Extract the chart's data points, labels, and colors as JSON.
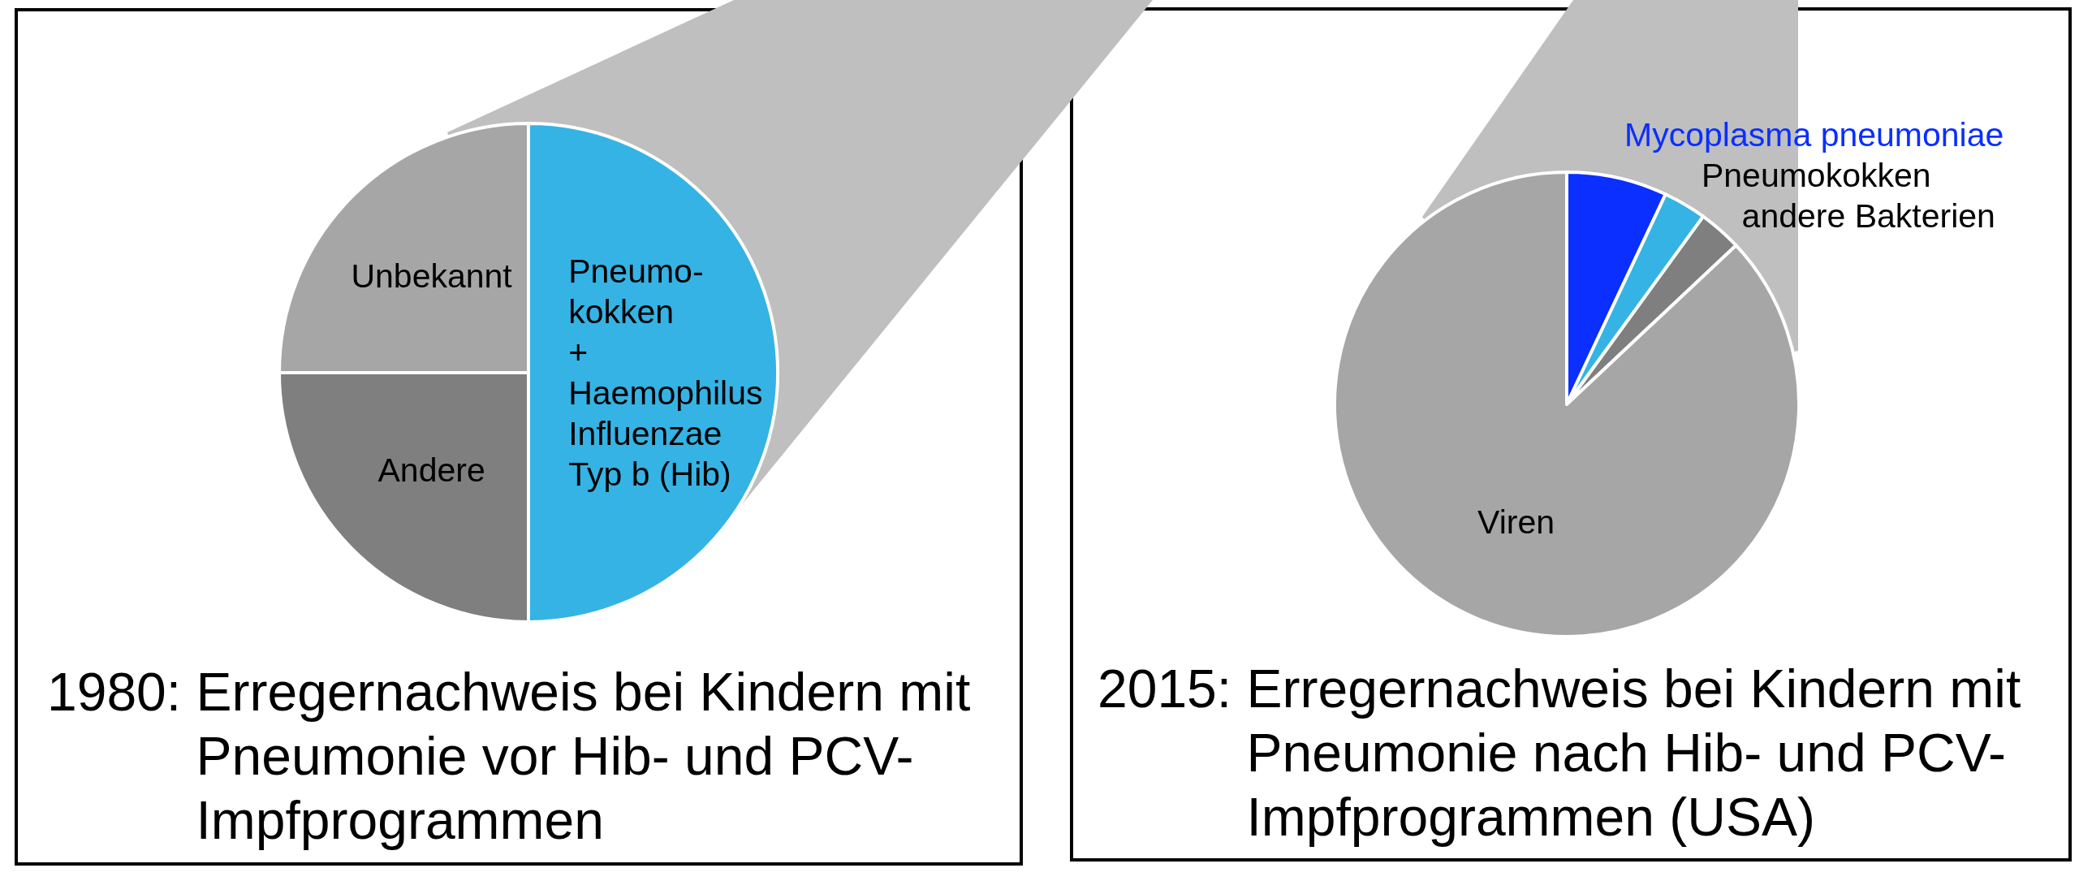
{
  "chart_data": [
    {
      "type": "pie",
      "title": "1980: Erregernachweis bei Kindern mit\nPneumonie vor Hib- und PCV-\nImpfprogrammen",
      "categories": [
        "Pneumo-\nkokken\n+\nHaemophilus\nInfluenzae\nTyp b (Hib)",
        "Andere",
        "Unbekannt"
      ],
      "values": [
        50,
        25,
        25
      ],
      "colors": [
        "#35b3e4",
        "#7f7f7f",
        "#a6a6a6"
      ]
    },
    {
      "type": "pie",
      "title": "2015: Erregernachweis bei Kindern mit\nPneumonie nach Hib- und PCV-\nImpfprogrammen (USA)",
      "categories": [
        "Mycoplasma pneumoniae",
        "Pneumokokken",
        "andere Bakterien",
        "Viren"
      ],
      "values": [
        7,
        3,
        3,
        87
      ],
      "colors": [
        "#0a2fff",
        "#35b3e4",
        "#7f7f7f",
        "#a6a6a6"
      ]
    }
  ]
}
